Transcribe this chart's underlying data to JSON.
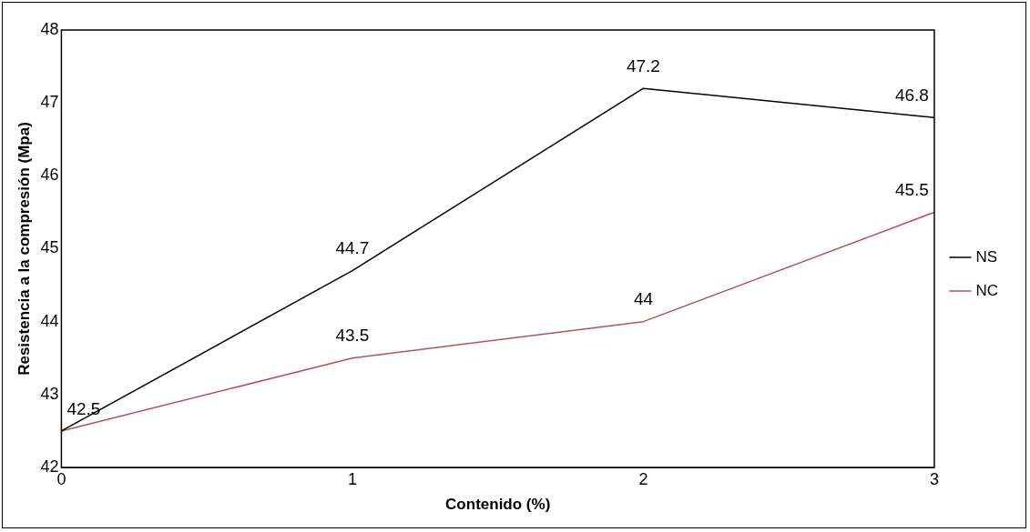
{
  "chart_data": {
    "type": "line",
    "xlabel": "Contenido (%)",
    "ylabel": "Resistencia a la compresión (Mpa)",
    "x": [
      0,
      1,
      2,
      3
    ],
    "xlim": [
      0,
      3
    ],
    "xticks": [
      0,
      1,
      2,
      3
    ],
    "ylim": [
      42,
      48
    ],
    "yticks": [
      42,
      43,
      44,
      45,
      46,
      47,
      48
    ],
    "grid": false,
    "legend": "right",
    "series": [
      {
        "name": "NS",
        "color": "#000000",
        "values": [
          42.5,
          44.7,
          47.2,
          46.8
        ],
        "value_labels": [
          "42.5",
          "44.7",
          "47.2",
          "46.8"
        ]
      },
      {
        "name": "NC",
        "color": "#c0504d",
        "values": [
          42.5,
          43.5,
          44,
          45.5
        ],
        "value_labels": [
          null,
          "43.5",
          "44",
          "45.5"
        ]
      }
    ]
  }
}
